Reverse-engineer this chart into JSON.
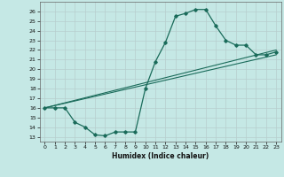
{
  "xlabel": "Humidex (Indice chaleur)",
  "background_color": "#c5e8e5",
  "line_color": "#1a6b5a",
  "xmin": -0.5,
  "xmax": 23.5,
  "ymin": 12.5,
  "ymax": 27.0,
  "series1_x": [
    0,
    1,
    2,
    3,
    4,
    5,
    6,
    7,
    8,
    9,
    10,
    11,
    12,
    13,
    14,
    15,
    16,
    17,
    18,
    19,
    20,
    21,
    22,
    23
  ],
  "series1_y": [
    16,
    16,
    16,
    14.5,
    14.0,
    13.2,
    13.1,
    13.5,
    13.5,
    13.5,
    18.0,
    20.8,
    22.8,
    25.5,
    25.8,
    26.2,
    26.2,
    24.5,
    23.0,
    22.5,
    22.5,
    21.5,
    21.5,
    21.8
  ],
  "series2_x": [
    0,
    23
  ],
  "series2_y": [
    16.0,
    22.0
  ],
  "series3_x": [
    0,
    23
  ],
  "series3_y": [
    16.0,
    21.5
  ],
  "yticks": [
    13,
    14,
    15,
    16,
    17,
    18,
    19,
    20,
    21,
    22,
    23,
    24,
    25,
    26
  ],
  "xticks": [
    0,
    1,
    2,
    3,
    4,
    5,
    6,
    7,
    8,
    9,
    10,
    11,
    12,
    13,
    14,
    15,
    16,
    17,
    18,
    19,
    20,
    21,
    22,
    23
  ]
}
